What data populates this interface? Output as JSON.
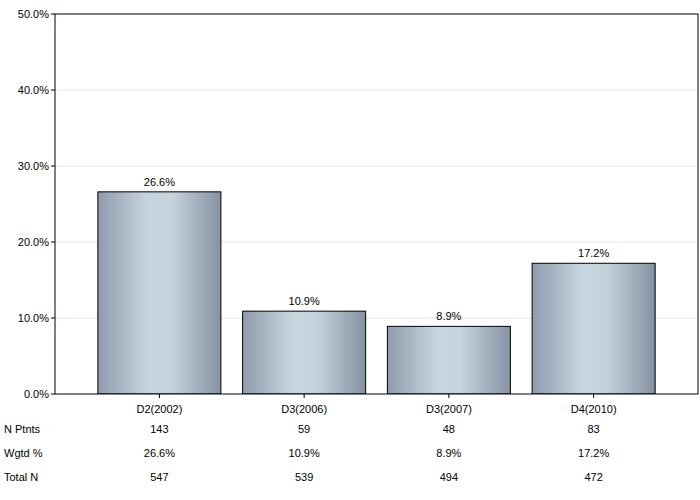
{
  "chart_data": {
    "type": "bar",
    "categories": [
      "D2(2002)",
      "D3(2006)",
      "D3(2007)",
      "D4(2010)"
    ],
    "values": [
      26.6,
      10.9,
      8.9,
      17.2
    ],
    "value_labels": [
      "26.6%",
      "10.9%",
      "8.9%",
      "17.2%"
    ],
    "color": "#b4c4d0",
    "ylim": [
      0,
      50
    ],
    "yticks": [
      {
        "value": 0,
        "label": "0.0%"
      },
      {
        "value": 10,
        "label": "10.0%"
      },
      {
        "value": 20,
        "label": "20.0%"
      },
      {
        "value": 30,
        "label": "30.0%"
      },
      {
        "value": 40,
        "label": "40.0%"
      },
      {
        "value": 50,
        "label": "50.0%"
      }
    ],
    "grid": true,
    "data_labels": true,
    "table": {
      "rows": [
        {
          "label": "N Ptnts",
          "values": [
            143,
            59,
            48,
            83
          ]
        },
        {
          "label": "Wgtd %",
          "values": [
            26.6,
            10.9,
            8.9,
            17.2
          ],
          "value_labels": [
            "26.6%",
            "10.9%",
            "8.9%",
            "17.2%"
          ]
        },
        {
          "label": "Total N",
          "values": [
            547,
            539,
            494,
            472
          ]
        }
      ]
    }
  }
}
